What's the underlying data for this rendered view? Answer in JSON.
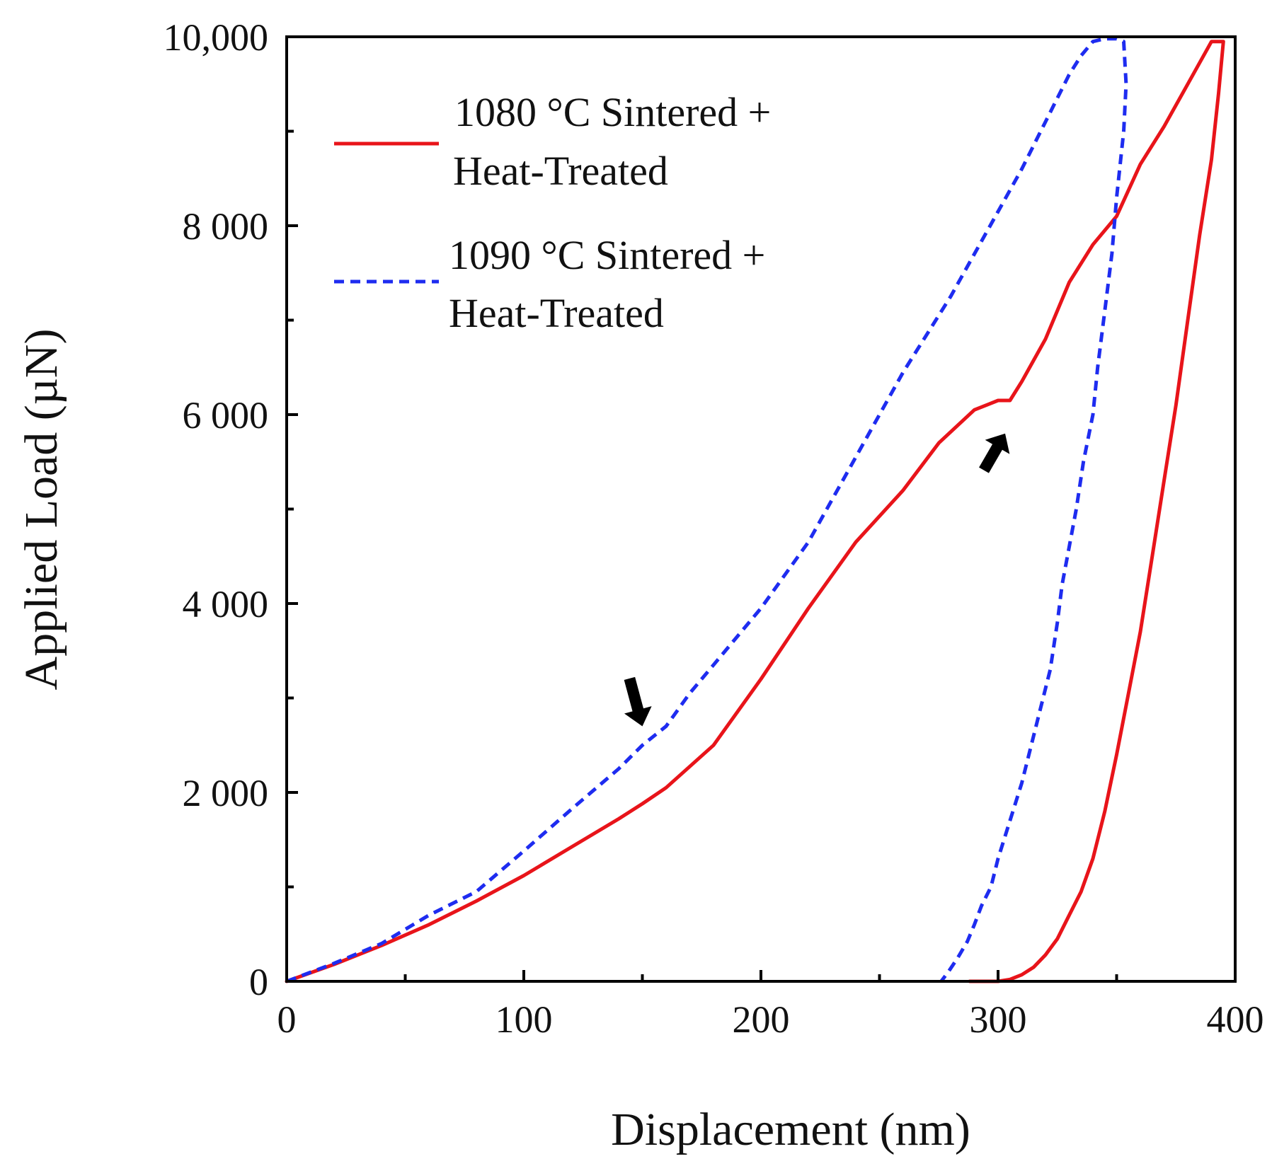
{
  "chart_data": {
    "type": "line",
    "title": "",
    "xlabel": "Displacement (nm)",
    "ylabel": "Applied Load (µN)",
    "xlim": [
      0,
      400
    ],
    "ylim": [
      0,
      10000
    ],
    "x_ticks": [
      0,
      100,
      200,
      300,
      400
    ],
    "x_tick_labels": [
      "0",
      "100",
      "200",
      "300",
      "400"
    ],
    "y_ticks": [
      0,
      2000,
      4000,
      6000,
      8000,
      10000
    ],
    "y_tick_labels": [
      "0",
      "2 000",
      "4 000",
      "6 000",
      "8 000",
      "10,000"
    ],
    "grid": false,
    "legend_position": "top-left",
    "series": [
      {
        "name": "1080 °C Sintered + Heat-Treated",
        "legend_lines": [
          "1080 °C Sintered +",
          "Heat-Treated"
        ],
        "color": "#e8141a",
        "style": "solid",
        "x": [
          0,
          20,
          40,
          60,
          80,
          100,
          120,
          140,
          150,
          160,
          180,
          200,
          220,
          240,
          260,
          275,
          290,
          300,
          305,
          310,
          320,
          330,
          340,
          350,
          360,
          370,
          380,
          390,
          395,
          393,
          390,
          385,
          380,
          375,
          370,
          365,
          360,
          355,
          350,
          345,
          340,
          335,
          330,
          325,
          320,
          315,
          310,
          305,
          300,
          297,
          293,
          290,
          288
        ],
        "y": [
          0,
          180,
          380,
          600,
          850,
          1120,
          1420,
          1720,
          1880,
          2050,
          2500,
          3200,
          3950,
          4650,
          5200,
          5700,
          6050,
          6150,
          6150,
          6350,
          6800,
          7400,
          7800,
          8100,
          8650,
          9050,
          9500,
          9950,
          9950,
          9400,
          8700,
          7900,
          7000,
          6100,
          5300,
          4500,
          3700,
          3050,
          2400,
          1800,
          1300,
          950,
          700,
          450,
          280,
          150,
          70,
          20,
          0,
          0,
          0,
          0,
          0
        ]
      },
      {
        "name": "1090 °C Sintered + Heat-Treated",
        "legend_lines": [
          "1090 °C Sintered +",
          "Heat-Treated"
        ],
        "color": "#1e2cf0",
        "style": "dashed",
        "x": [
          0,
          20,
          40,
          60,
          80,
          100,
          120,
          140,
          150,
          160,
          170,
          180,
          200,
          220,
          240,
          260,
          280,
          290,
          300,
          310,
          320,
          330,
          335,
          340,
          345,
          350,
          353,
          354,
          353,
          350,
          348,
          345,
          342,
          340,
          336,
          333,
          330,
          327,
          325,
          322,
          318,
          314,
          310,
          305,
          300,
          297,
          293,
          290,
          287,
          283,
          279,
          276
        ],
        "y": [
          0,
          190,
          400,
          700,
          950,
          1380,
          1820,
          2250,
          2500,
          2700,
          3050,
          3350,
          3950,
          4650,
          5550,
          6450,
          7250,
          7700,
          8150,
          8600,
          9100,
          9600,
          9800,
          9950,
          9980,
          9980,
          9950,
          9500,
          9000,
          8300,
          7700,
          7100,
          6500,
          6000,
          5500,
          5000,
          4600,
          4200,
          3800,
          3300,
          2900,
          2500,
          2100,
          1700,
          1300,
          1000,
          800,
          600,
          420,
          250,
          100,
          0
        ]
      }
    ],
    "annotations": [
      {
        "type": "arrow",
        "direction": "down",
        "x": 150,
        "y": 2700,
        "color": "#000000"
      },
      {
        "type": "arrow",
        "direction": "up",
        "x": 303,
        "y": 5800,
        "color": "#000000"
      }
    ]
  }
}
